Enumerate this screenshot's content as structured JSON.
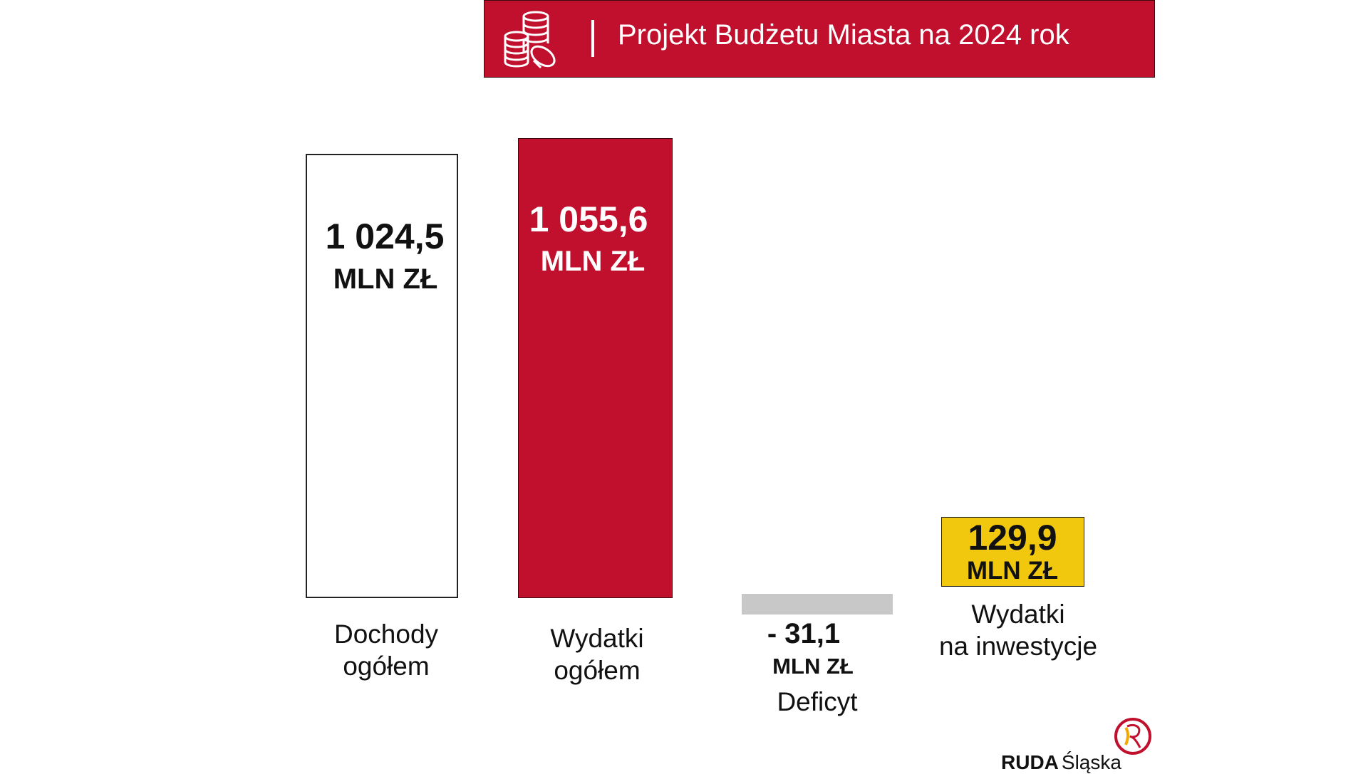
{
  "header": {
    "title": "Projekt Budżetu Miasta na 2024 rok",
    "icon": "coins-icon",
    "color": "#c1102e"
  },
  "chart_data": {
    "type": "bar",
    "categories": [
      "Dochody ogółem",
      "Wydatki ogółem",
      "Deficyt",
      "Wydatki na inwestycje"
    ],
    "values": [
      1024.5,
      1055.6,
      -31.1,
      129.9
    ],
    "unit": "MLN ZŁ",
    "colors": [
      "#ffffff",
      "#c1102e",
      "#c8c8c8",
      "#f2c80f"
    ],
    "value_labels": [
      "1 024,5",
      "1 055,6",
      "- 31,1",
      "129,9"
    ],
    "category_lines": [
      [
        "Dochody",
        "ogółem"
      ],
      [
        "Wydatki",
        "ogółem"
      ],
      [
        "Deficyt"
      ],
      [
        "Wydatki",
        "na inwestycje"
      ]
    ]
  },
  "logo": {
    "text_bold": "RUDA",
    "text_regular": "Śląska"
  }
}
